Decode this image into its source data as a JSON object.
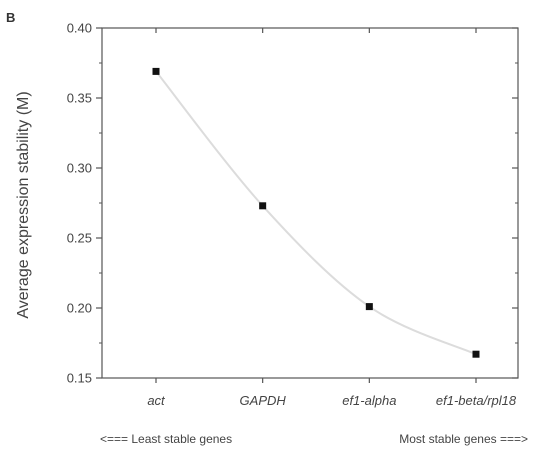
{
  "panel_label": "B",
  "chart_data": {
    "type": "line",
    "categories": [
      "act",
      "GAPDH",
      "ef1-alpha",
      "ef1-beta/rpl18"
    ],
    "values": [
      0.369,
      0.273,
      0.201,
      0.167
    ],
    "ylabel": "Average expression stability (M)",
    "xlabel": "",
    "ylim": [
      0.15,
      0.4
    ],
    "yticks": [
      0.15,
      0.2,
      0.25,
      0.3,
      0.35,
      0.4
    ],
    "ytick_labels": [
      "0.15",
      "0.20",
      "0.25",
      "0.30",
      "0.35",
      "0.40"
    ],
    "grid": false,
    "line_color": "#dcdcdc",
    "marker_color": "#111111"
  },
  "annotations": {
    "left": "<===   Least stable genes",
    "right": "Most stable genes   ===>"
  }
}
